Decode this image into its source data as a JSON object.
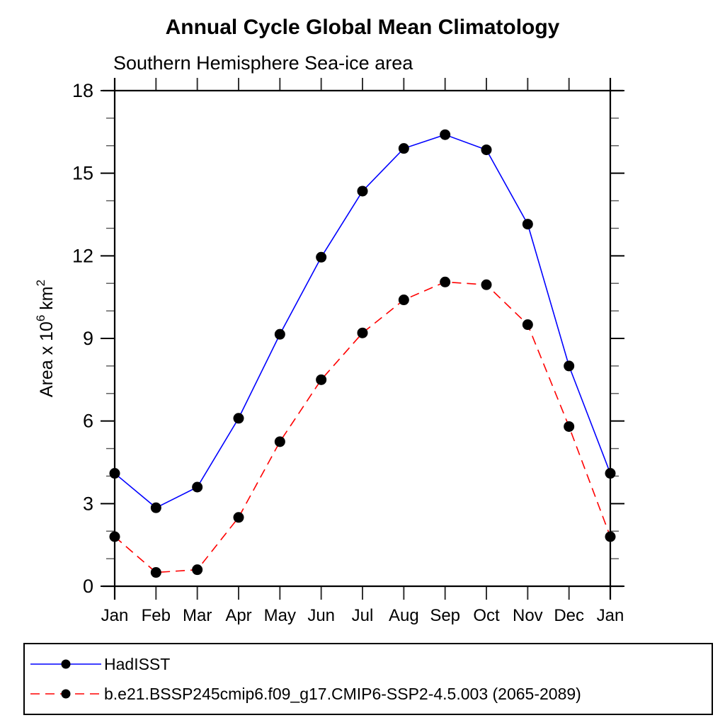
{
  "page": {
    "background": "#ffffff"
  },
  "chart_data": {
    "type": "line",
    "title": "Annual Cycle Global Mean Climatology",
    "subtitle": "Southern Hemisphere Sea-ice area",
    "ylabel": "Area x 10^6 km^2",
    "ylabel_parts": {
      "base": "Area x 10",
      "exp": "6",
      "unit": " km",
      "unit_exp": "2"
    },
    "x_tick_labels": [
      "Jan",
      "Feb",
      "Mar",
      "Apr",
      "May",
      "Jun",
      "Jul",
      "Aug",
      "Sep",
      "Oct",
      "Nov",
      "Dec",
      "Jan"
    ],
    "y_major_ticks": [
      0,
      3,
      6,
      9,
      12,
      15,
      18
    ],
    "y_minor_step": 1,
    "ylim": [
      0,
      18
    ],
    "grid": false,
    "legend_position": "bottom",
    "marker": "filled-circle",
    "marker_color": "#000000",
    "series": [
      {
        "name": "HadISST",
        "color": "#0000ff",
        "line_style": "solid",
        "values": [
          4.1,
          2.85,
          3.6,
          6.1,
          9.15,
          11.95,
          14.35,
          15.9,
          16.4,
          15.85,
          13.15,
          8.0,
          4.1
        ]
      },
      {
        "name": "b.e21.BSSP245cmip6.f09_g17.CMIP6-SSP2-4.5.003 (2065-2089)",
        "color": "#ff0000",
        "line_style": "dashed",
        "values": [
          1.8,
          0.5,
          0.6,
          2.5,
          5.25,
          7.5,
          9.2,
          10.4,
          11.05,
          10.95,
          9.5,
          5.8,
          1.8
        ]
      }
    ]
  }
}
